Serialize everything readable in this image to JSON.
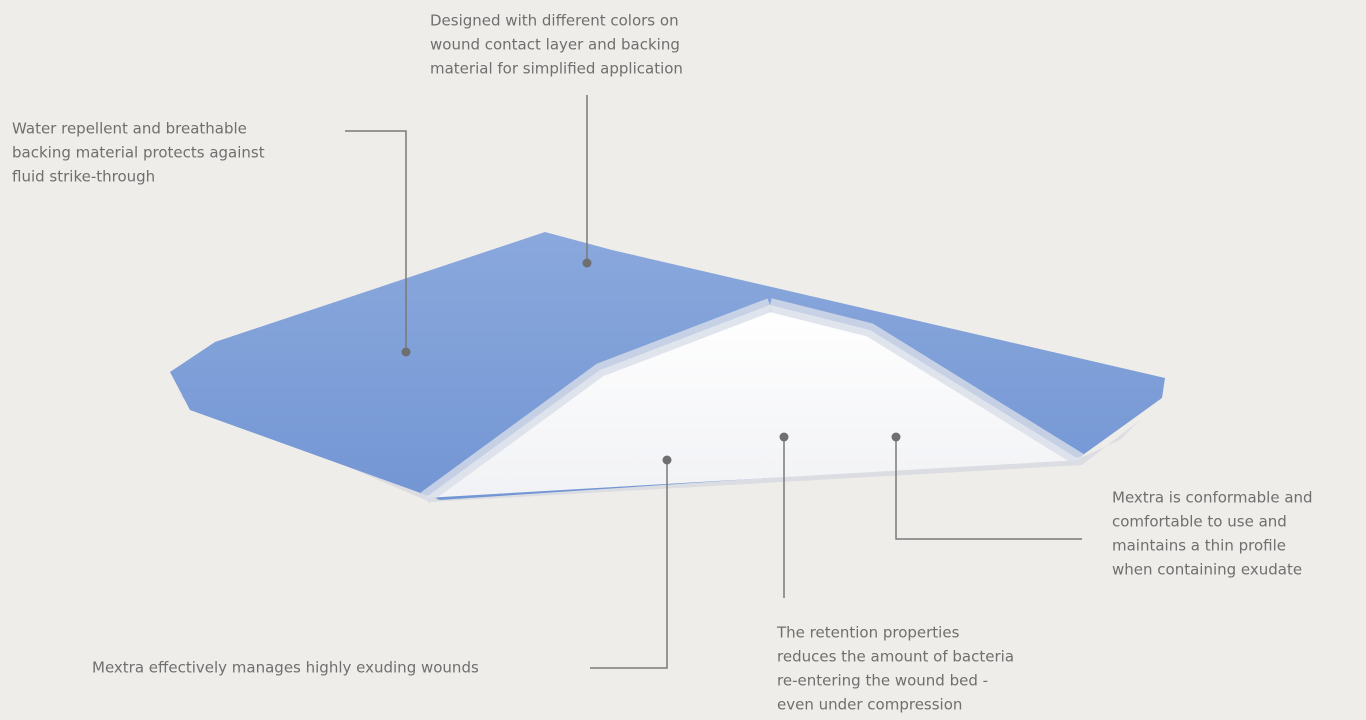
{
  "callouts": [
    {
      "lines": [
        "Designed with different colors on",
        "wound contact layer and backing",
        "material for simplified application"
      ]
    },
    {
      "lines": [
        "Water repellent and breathable",
        "backing material protects against",
        "fluid strike-through"
      ]
    },
    {
      "lines": [
        "Mextra is conformable and",
        "comfortable to use and",
        "maintains a thin profile",
        "when containing exudate"
      ]
    },
    {
      "lines": [
        "The retention properties",
        "reduces the amount of bacteria",
        "re-entering the wound bed -",
        "even under compression"
      ]
    },
    {
      "lines": [
        "Mextra effectively manages highly exuding wounds"
      ]
    }
  ]
}
